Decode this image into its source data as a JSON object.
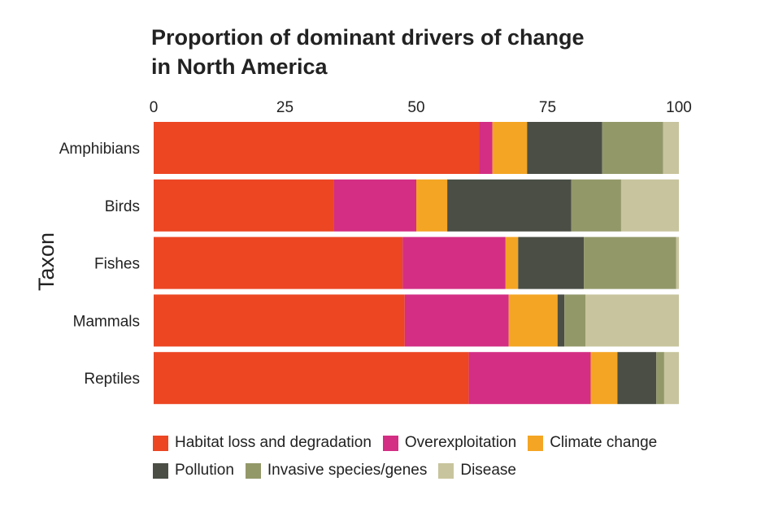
{
  "chart_data": {
    "type": "bar",
    "orientation": "horizontal",
    "stacked": true,
    "title": "Proportion of dominant drivers of change in North America",
    "title_lines": [
      "Proportion of dominant drivers of change",
      "in North America"
    ],
    "xlabel": "",
    "ylabel": "Taxon",
    "xlim": [
      0,
      100
    ],
    "xticks": [
      0,
      25,
      50,
      75,
      100
    ],
    "xtick_labels": [
      "0",
      "25",
      "50",
      "75",
      "100"
    ],
    "x_axis_position": "top",
    "grid": false,
    "legend_position": "bottom",
    "categories": [
      "Amphibians",
      "Birds",
      "Fishes",
      "Mammals",
      "Reptiles"
    ],
    "series": [
      {
        "name": "Habitat loss and degradation",
        "color": "#ec4623",
        "values": [
          62,
          34.3,
          47.4,
          47.8,
          60
        ]
      },
      {
        "name": "Overexploitation",
        "color": "#d32e84",
        "values": [
          2.5,
          15.7,
          19.6,
          19.8,
          23.2
        ]
      },
      {
        "name": "Climate change",
        "color": "#f4a523",
        "values": [
          6.6,
          5.9,
          2.4,
          9.3,
          5.1
        ]
      },
      {
        "name": "Pollution",
        "color": "#4a4e45",
        "values": [
          14.3,
          23.6,
          12.5,
          1.3,
          7.4
        ]
      },
      {
        "name": "Invasive species/genes",
        "color": "#939869",
        "values": [
          11.6,
          9.5,
          17.6,
          4,
          1.5
        ]
      },
      {
        "name": "Disease",
        "color": "#c8c49d",
        "values": [
          3,
          11,
          0.5,
          17.8,
          2.8
        ]
      }
    ],
    "legend_rows": [
      [
        "Habitat loss and degradation",
        "Overexploitation",
        "Climate change"
      ],
      [
        "Pollution",
        "Invasive species/genes",
        "Disease"
      ]
    ]
  }
}
